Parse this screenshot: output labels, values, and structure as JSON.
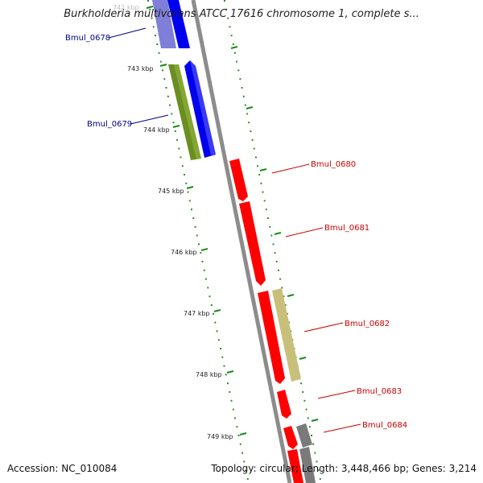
{
  "title": "Burkholderia multivorans ATCC 17616 chromosome 1, complete s...",
  "footer": {
    "accession": "Accession: NC_010084",
    "stats": "Topology: circular; Length: 3,448,466 bp; Genes: 3,214"
  },
  "ticks": [
    "742 kbp",
    "743 kbp",
    "744 kbp",
    "745 kbp",
    "746 kbp",
    "747 kbp",
    "748 kbp",
    "749 kbp"
  ],
  "genes": [
    {
      "label": "Bmul_0678",
      "color": "#00008b"
    },
    {
      "label": "Bmul_0679",
      "color": "#00008b"
    },
    {
      "label": "Bmul_0680",
      "color": "#cc0000"
    },
    {
      "label": "Bmul_0681",
      "color": "#cc0000"
    },
    {
      "label": "Bmul_0682",
      "color": "#cc0000"
    },
    {
      "label": "Bmul_0683",
      "color": "#cc0000"
    },
    {
      "label": "Bmul_0684",
      "color": "#cc0000"
    }
  ],
  "colors": {
    "backbone": "#8c8c8c",
    "tick_marks": "#1a8a1a",
    "blue_cds": "#0000ee",
    "green_cds": "#6b8e23",
    "red_cds": "#ff0000",
    "khaki_cds": "#c8c07a",
    "gray_cds": "#7a7a7a"
  }
}
